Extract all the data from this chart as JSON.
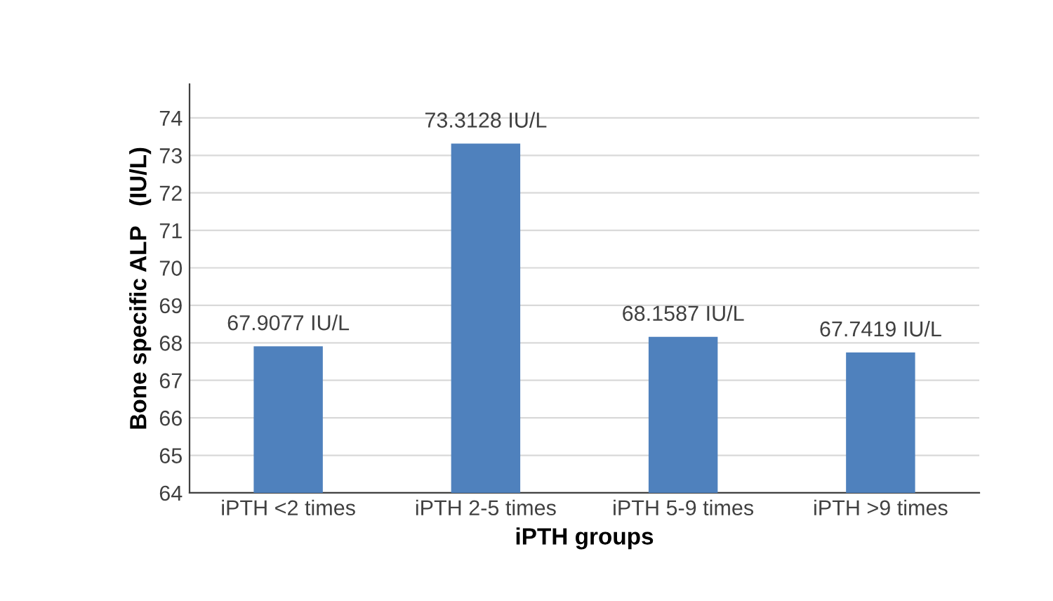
{
  "chart_data": {
    "type": "bar",
    "xlabel": "iPTH groups",
    "ylabel": "Bone specific ALP   (IU/L)",
    "categories": [
      "iPTH <2 times",
      "iPTH 2-5 times",
      "iPTH 5-9 times",
      "iPTH >9 times"
    ],
    "values": [
      67.9077,
      73.3128,
      68.1587,
      67.7419
    ],
    "value_labels": [
      "67.9077 IU/L",
      "73.3128 IU/L",
      "68.1587 IU/L",
      "67.7419 IU/L"
    ],
    "color": "#4f81bd",
    "ylim": [
      64,
      74.9
    ],
    "yticks": [
      64,
      65,
      66,
      67,
      68,
      69,
      70,
      71,
      72,
      73,
      74
    ],
    "grid": "y",
    "legend": false
  }
}
